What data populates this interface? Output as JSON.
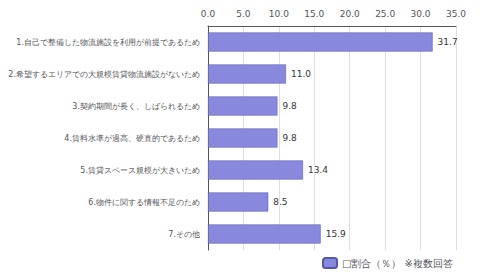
{
  "chart_data": {
    "type": "bar",
    "orientation": "horizontal",
    "categories": [
      "1.自己で整備した物流施設を利用が前提であるため",
      "2.希望するエリアでの大規模賃貸物流施設がないため",
      "3.契約期間が長く、しばられるため",
      "4.賃料水準が過高、硬直的であるため",
      "5.賃貸スペース規模が大きいため",
      "6.物件に関する情報不足のため",
      "7.その他"
    ],
    "series": [
      {
        "name": "□割合（％） ※複数回答",
        "color": "#8888dd",
        "values": [
          31.7,
          11.0,
          9.8,
          9.8,
          13.4,
          8.5,
          15.9
        ],
        "value_labels": [
          "31.7",
          "11.0",
          "9.8",
          "9.8",
          "13.4",
          "8.5",
          "15.9"
        ]
      }
    ],
    "xlim": [
      0,
      35.0
    ],
    "xticks": [
      {
        "value": 0.0,
        "label": "0.0"
      },
      {
        "value": 5.0,
        "label": "5.0"
      },
      {
        "value": 10.0,
        "label": "10.0"
      },
      {
        "value": 15.0,
        "label": "15.0"
      },
      {
        "value": 20.0,
        "label": "20.0"
      },
      {
        "value": 25.0,
        "label": "25.0"
      },
      {
        "value": 30.0,
        "label": "30.0"
      },
      {
        "value": 35.0,
        "label": "35.0"
      }
    ],
    "grid": true,
    "legend": "lower right",
    "data_labels": true
  }
}
